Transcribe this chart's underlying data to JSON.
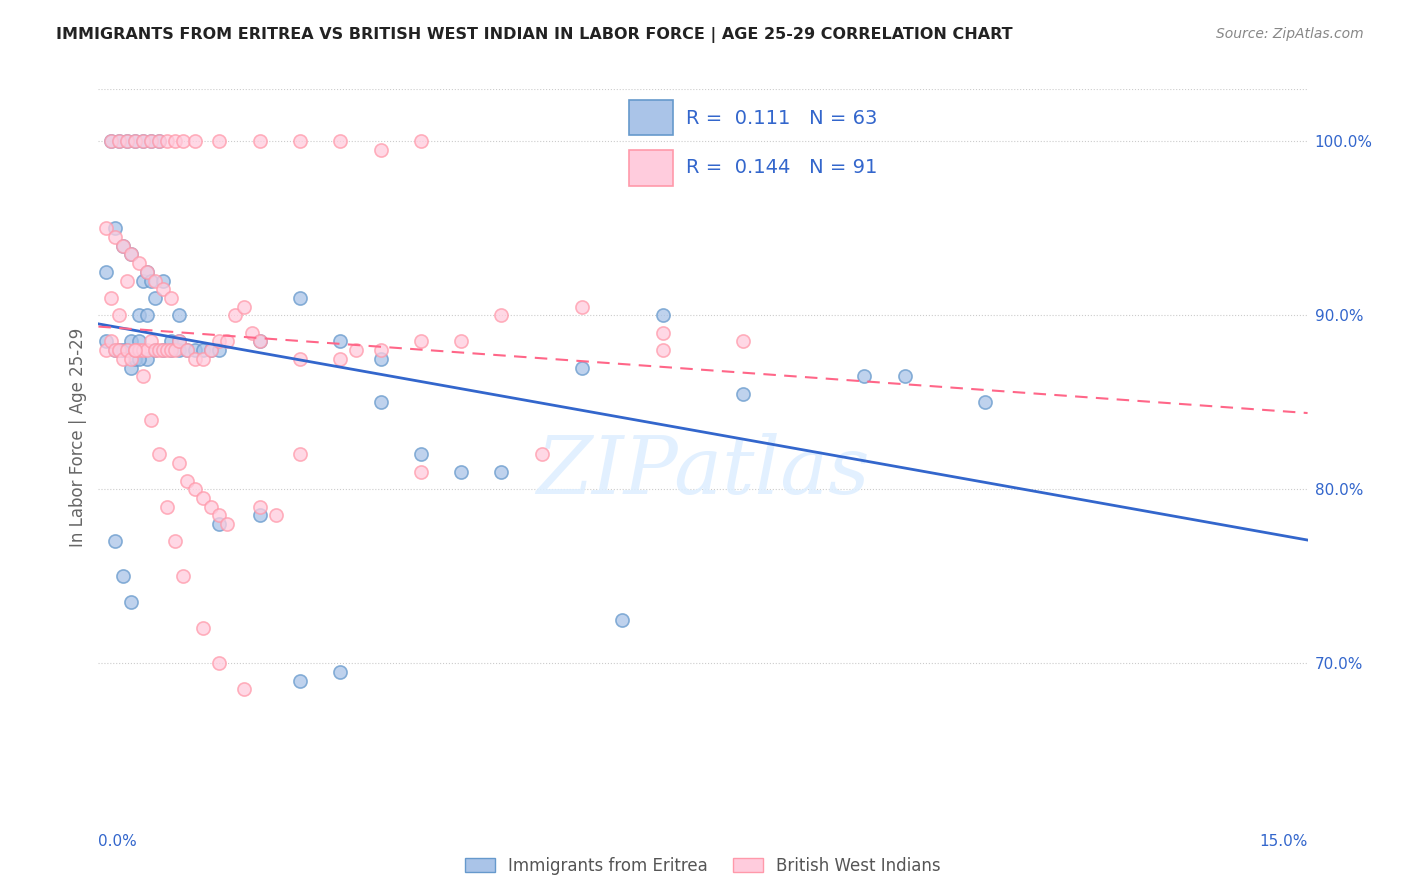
{
  "title": "IMMIGRANTS FROM ERITREA VS BRITISH WEST INDIAN IN LABOR FORCE | AGE 25-29 CORRELATION CHART",
  "source": "Source: ZipAtlas.com",
  "ylabel": "In Labor Force | Age 25-29",
  "xlim": [
    0.0,
    15.0
  ],
  "ylim": [
    63.0,
    103.0
  ],
  "yticks": [
    70.0,
    80.0,
    90.0,
    100.0
  ],
  "legend_R1": "0.111",
  "legend_N1": "63",
  "legend_R2": "0.144",
  "legend_N2": "91",
  "color_blue": "#6699CC",
  "color_blue_fill": "#AAC4E8",
  "color_pink": "#FF99AA",
  "color_pink_fill": "#FFCCDD",
  "color_blue_text": "#3366CC",
  "color_pink_text": "#FF6688",
  "watermark": "ZIPatlas",
  "series1_name": "Immigrants from Eritrea",
  "series2_name": "British West Indians",
  "blue_x": [
    0.1,
    0.2,
    0.25,
    0.3,
    0.35,
    0.4,
    0.5,
    0.6,
    0.7,
    0.8,
    0.9,
    1.0,
    1.1,
    1.2,
    1.3,
    1.4,
    1.5,
    0.4,
    0.45,
    0.5,
    0.55,
    0.6,
    0.65,
    0.7,
    0.8,
    0.9,
    1.0,
    2.0,
    2.5,
    3.0,
    3.5,
    4.0,
    5.0,
    6.0,
    7.0,
    8.0,
    9.5,
    0.15,
    0.25,
    0.35,
    0.45,
    0.55,
    0.65,
    0.75,
    0.2,
    0.3,
    0.4,
    0.5,
    0.6,
    1.0,
    1.5,
    2.0,
    2.5,
    3.0,
    3.5,
    4.5,
    6.5,
    10.0,
    11.0,
    0.1,
    0.2,
    0.3,
    0.4
  ],
  "blue_y": [
    88.5,
    88.0,
    88.0,
    88.0,
    88.0,
    88.5,
    88.5,
    87.5,
    88.0,
    88.0,
    88.0,
    88.0,
    88.0,
    88.0,
    88.0,
    88.0,
    88.0,
    87.0,
    87.5,
    87.5,
    92.0,
    92.5,
    92.0,
    91.0,
    92.0,
    88.5,
    88.5,
    88.5,
    91.0,
    88.5,
    87.5,
    82.0,
    81.0,
    87.0,
    90.0,
    85.5,
    86.5,
    100.0,
    100.0,
    100.0,
    100.0,
    100.0,
    100.0,
    100.0,
    95.0,
    94.0,
    93.5,
    90.0,
    90.0,
    90.0,
    78.0,
    78.5,
    69.0,
    69.5,
    85.0,
    81.0,
    72.5,
    86.5,
    85.0,
    92.5,
    77.0,
    75.0,
    73.5
  ],
  "pink_x": [
    0.1,
    0.15,
    0.2,
    0.25,
    0.3,
    0.35,
    0.4,
    0.45,
    0.5,
    0.55,
    0.6,
    0.65,
    0.7,
    0.75,
    0.8,
    0.85,
    0.9,
    0.95,
    1.0,
    1.1,
    1.2,
    1.3,
    1.4,
    1.5,
    1.6,
    1.7,
    1.8,
    1.9,
    2.0,
    2.5,
    3.0,
    3.5,
    4.0,
    4.5,
    5.0,
    6.0,
    7.0,
    8.0,
    0.15,
    0.25,
    0.35,
    0.45,
    0.55,
    0.65,
    0.75,
    0.85,
    0.95,
    1.05,
    1.2,
    1.5,
    2.0,
    2.5,
    3.0,
    3.5,
    4.0,
    0.1,
    0.2,
    0.3,
    0.4,
    0.5,
    0.6,
    0.7,
    0.8,
    0.9,
    1.0,
    1.1,
    1.2,
    1.3,
    1.4,
    1.5,
    1.6,
    0.15,
    0.25,
    0.35,
    0.45,
    0.55,
    0.65,
    0.75,
    0.85,
    0.95,
    1.05,
    1.3,
    1.5,
    1.8,
    2.0,
    2.2,
    2.5,
    3.2,
    4.0,
    5.5,
    7.0
  ],
  "pink_y": [
    88.0,
    88.5,
    88.0,
    88.0,
    87.5,
    88.0,
    87.5,
    88.0,
    88.0,
    88.0,
    88.0,
    88.5,
    88.0,
    88.0,
    88.0,
    88.0,
    88.0,
    88.0,
    88.5,
    88.0,
    87.5,
    87.5,
    88.0,
    88.5,
    88.5,
    90.0,
    90.5,
    89.0,
    88.5,
    87.5,
    87.5,
    88.0,
    88.5,
    88.5,
    90.0,
    90.5,
    89.0,
    88.5,
    100.0,
    100.0,
    100.0,
    100.0,
    100.0,
    100.0,
    100.0,
    100.0,
    100.0,
    100.0,
    100.0,
    100.0,
    100.0,
    100.0,
    100.0,
    99.5,
    100.0,
    95.0,
    94.5,
    94.0,
    93.5,
    93.0,
    92.5,
    92.0,
    91.5,
    91.0,
    81.5,
    80.5,
    80.0,
    79.5,
    79.0,
    78.5,
    78.0,
    91.0,
    90.0,
    92.0,
    88.0,
    86.5,
    84.0,
    82.0,
    79.0,
    77.0,
    75.0,
    72.0,
    70.0,
    68.5,
    79.0,
    78.5,
    82.0,
    88.0,
    81.0,
    82.0,
    88.0
  ]
}
